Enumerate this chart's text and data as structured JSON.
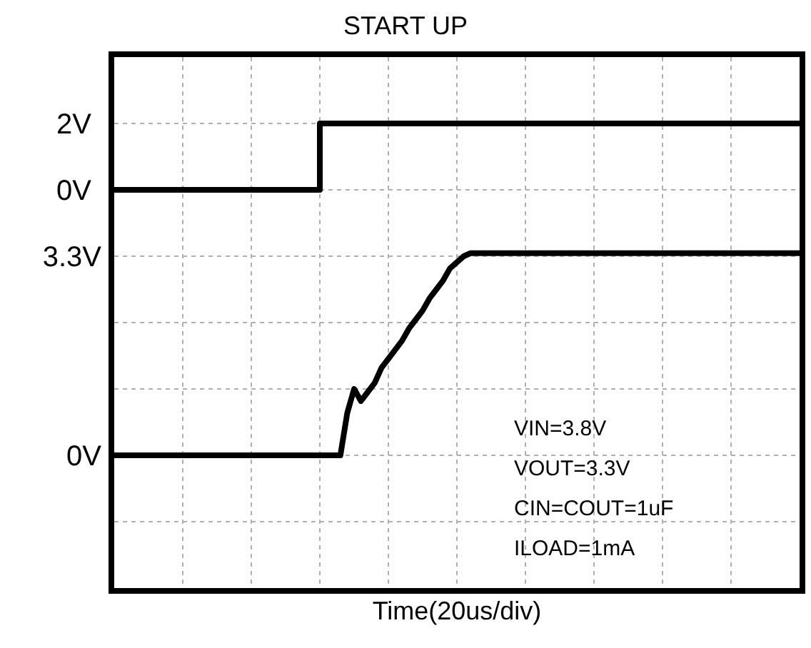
{
  "chart_data": {
    "type": "line",
    "title": "START UP",
    "xlabel": "Time(20us/div)",
    "categories": [
      null,
      null,
      null,
      null,
      null,
      null,
      null,
      null,
      null,
      null,
      null,
      null,
      null,
      null,
      null,
      null,
      null,
      null,
      null,
      null,
      null,
      null,
      null,
      null,
      null,
      null,
      null,
      null,
      null,
      null,
      null,
      null,
      null,
      null,
      null,
      null,
      null,
      null,
      null,
      null,
      null,
      null,
      null,
      null,
      null,
      null,
      null,
      null,
      null,
      null,
      null,
      null,
      null,
      null,
      null,
      null,
      null,
      null,
      null,
      null,
      null,
      null,
      null,
      null,
      null,
      null,
      null,
      null,
      null,
      null,
      null,
      null,
      null,
      null,
      null,
      null,
      null,
      null,
      null,
      null,
      null,
      null,
      null,
      null,
      null,
      null,
      null,
      null,
      null,
      null,
      null,
      null,
      null,
      null,
      null,
      null,
      null,
      null,
      null,
      null,
      null
    ],
    "series": [
      {
        "type": "step",
        "color": "#000000",
        "values": [
          0,
          0,
          0,
          0,
          0,
          0,
          0,
          0,
          0,
          0,
          0,
          0,
          0,
          0,
          0,
          0,
          0,
          0,
          0,
          0,
          0,
          0,
          0,
          0,
          0,
          0,
          0,
          0,
          0,
          0,
          2,
          2,
          2,
          2,
          2,
          2,
          2,
          2,
          2,
          2,
          2,
          2,
          2,
          2,
          2,
          2,
          2,
          2,
          2,
          2,
          2,
          2,
          2,
          2,
          2,
          2,
          2,
          2,
          2,
          2,
          2,
          2,
          2,
          2,
          2,
          2,
          2,
          2,
          2,
          2,
          2,
          2,
          2,
          2,
          2,
          2,
          2,
          2,
          2,
          2,
          2,
          2,
          2,
          2,
          2,
          2,
          2,
          2,
          2,
          2,
          2,
          2,
          2,
          2,
          2,
          2,
          2,
          2,
          2,
          2,
          2
        ]
      },
      {
        "axis": "y2",
        "color": "#000000",
        "values": [
          0,
          0,
          0,
          0,
          0,
          0,
          0,
          0,
          0,
          0,
          0,
          0,
          0,
          0,
          0,
          0,
          0,
          0,
          0,
          0,
          0,
          0,
          0,
          0,
          0,
          0,
          0,
          0,
          0,
          0,
          0,
          0,
          0,
          0,
          0.7,
          1.1,
          0.9,
          1.05,
          1.2,
          1.45,
          1.6,
          1.75,
          1.9,
          2.1,
          2.25,
          2.4,
          2.6,
          2.75,
          2.9,
          3.1,
          3.2,
          3.3,
          3.35,
          3.35,
          3.35,
          3.35,
          3.35,
          3.35,
          3.35,
          3.35,
          3.35,
          3.35,
          3.35,
          3.35,
          3.35,
          3.35,
          3.35,
          3.35,
          3.35,
          3.35,
          3.35,
          3.35,
          3.35,
          3.35,
          3.35,
          3.35,
          3.35,
          3.35,
          3.35,
          3.35,
          3.35,
          3.35,
          3.35,
          3.35,
          3.35,
          3.35,
          3.35,
          3.35,
          3.35,
          3.35,
          3.35,
          3.35,
          3.35,
          3.35,
          3.35,
          3.35,
          3.35,
          3.35,
          3.35,
          3.35,
          3.35
        ]
      }
    ],
    "ylim": [
      -12,
      4
    ],
    "yticks": [
      {
        "value": -10,
        "label": null
      },
      {
        "value": -8,
        "label": null
      },
      {
        "value": -6,
        "label": null
      },
      {
        "value": -4,
        "label": null
      },
      {
        "value": -2,
        "label": null
      },
      {
        "value": 0,
        "label": "0V"
      },
      {
        "value": 2,
        "label": "2V"
      }
    ],
    "y2lim": [
      -2.2,
      6.6
    ],
    "y2ticks": [
      {
        "value": 0,
        "label": "0V"
      },
      {
        "value": 3.3,
        "label": "3.3V"
      }
    ],
    "annotations": [
      "VIN=3.8V",
      "VOUT=3.3V",
      "CIN=COUT=1uF",
      "ILOAD=1mA"
    ],
    "grid": true,
    "marker": "none",
    "line_style": "solid"
  }
}
